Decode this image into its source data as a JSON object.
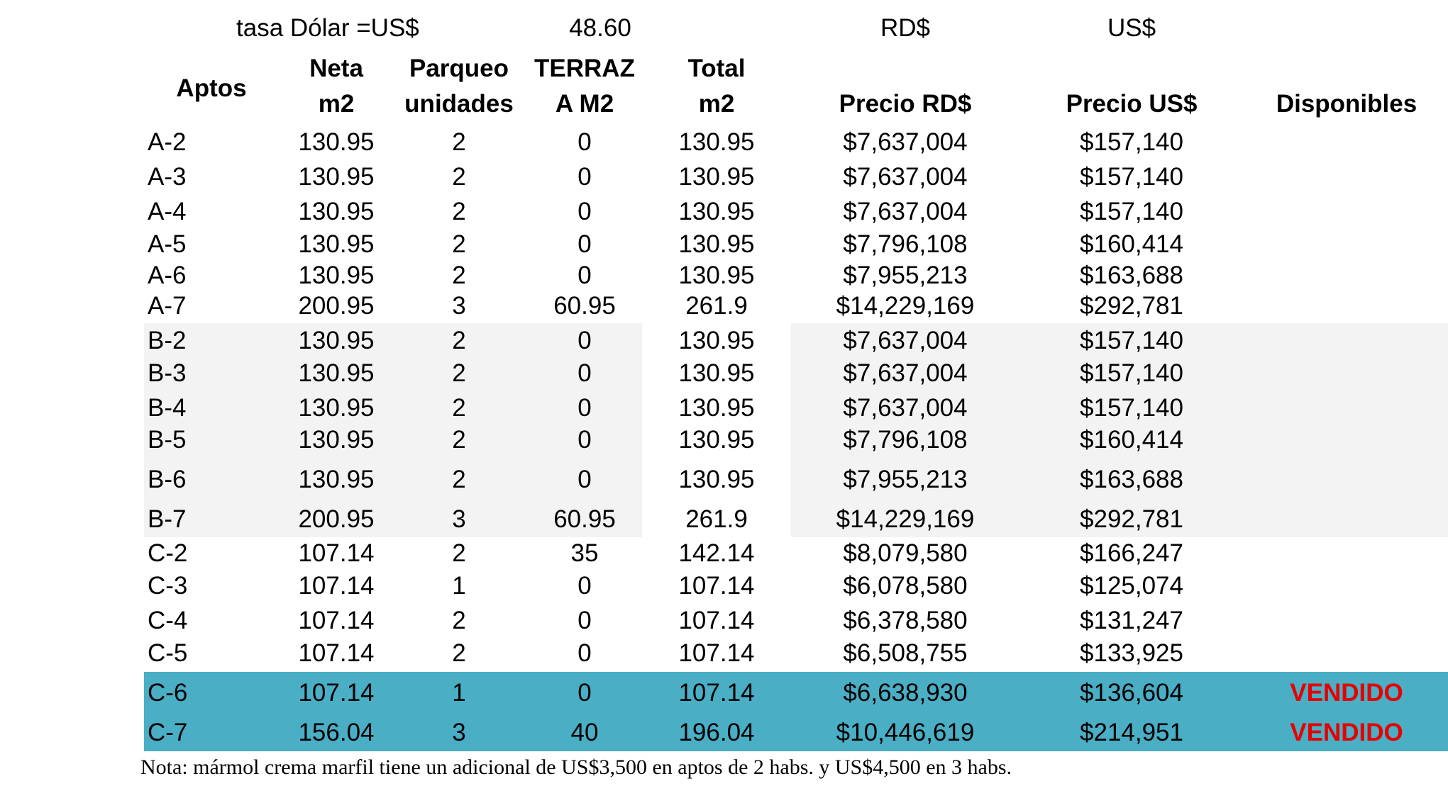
{
  "header": {
    "rate_label": "tasa Dólar =US$",
    "rate_value": "48.60",
    "currency_rd": "RD$",
    "currency_us": "US$"
  },
  "columns": {
    "aptos": "Aptos",
    "neta_1": "Neta",
    "neta_2": "m2",
    "parqueo_1": "Parqueo",
    "parqueo_2": "unidades",
    "terraza_1": "TERRAZ",
    "terraza_2": "A M2",
    "total_1": "Total",
    "total_2": "m2",
    "precio_rd": "Precio RD$",
    "precio_us": "Precio US$",
    "disponibles": "Disponibles"
  },
  "rows": [
    {
      "apto": "A-2",
      "neta": "130.95",
      "parqueo": "2",
      "terraza": "0",
      "total": "130.95",
      "precio_rd": "$7,637,004",
      "precio_us": "$157,140",
      "status": ""
    },
    {
      "apto": "A-3",
      "neta": "130.95",
      "parqueo": "2",
      "terraza": "0",
      "total": "130.95",
      "precio_rd": "$7,637,004",
      "precio_us": "$157,140",
      "status": ""
    },
    {
      "apto": "A-4",
      "neta": "130.95",
      "parqueo": "2",
      "terraza": "0",
      "total": "130.95",
      "precio_rd": "$7,637,004",
      "precio_us": "$157,140",
      "status": ""
    },
    {
      "apto": "A-5",
      "neta": "130.95",
      "parqueo": "2",
      "terraza": "0",
      "total": "130.95",
      "precio_rd": "$7,796,108",
      "precio_us": "$160,414",
      "status": ""
    },
    {
      "apto": "A-6",
      "neta": "130.95",
      "parqueo": "2",
      "terraza": "0",
      "total": "130.95",
      "precio_rd": "$7,955,213",
      "precio_us": "$163,688",
      "status": ""
    },
    {
      "apto": "A-7",
      "neta": "200.95",
      "parqueo": "3",
      "terraza": "60.95",
      "total": "261.9",
      "precio_rd": "$14,229,169",
      "precio_us": "$292,781",
      "status": ""
    },
    {
      "apto": "B-2",
      "neta": "130.95",
      "parqueo": "2",
      "terraza": "0",
      "total": "130.95",
      "precio_rd": "$7,637,004",
      "precio_us": "$157,140",
      "status": ""
    },
    {
      "apto": "B-3",
      "neta": "130.95",
      "parqueo": "2",
      "terraza": "0",
      "total": "130.95",
      "precio_rd": "$7,637,004",
      "precio_us": "$157,140",
      "status": ""
    },
    {
      "apto": "B-4",
      "neta": "130.95",
      "parqueo": "2",
      "terraza": "0",
      "total": "130.95",
      "precio_rd": "$7,637,004",
      "precio_us": "$157,140",
      "status": ""
    },
    {
      "apto": "B-5",
      "neta": "130.95",
      "parqueo": "2",
      "terraza": "0",
      "total": "130.95",
      "precio_rd": "$7,796,108",
      "precio_us": "$160,414",
      "status": ""
    },
    {
      "apto": "B-6",
      "neta": "130.95",
      "parqueo": "2",
      "terraza": "0",
      "total": "130.95",
      "precio_rd": "$7,955,213",
      "precio_us": "$163,688",
      "status": ""
    },
    {
      "apto": "B-7",
      "neta": "200.95",
      "parqueo": "3",
      "terraza": "60.95",
      "total": "261.9",
      "precio_rd": "$14,229,169",
      "precio_us": "$292,781",
      "status": ""
    },
    {
      "apto": "C-2",
      "neta": "107.14",
      "parqueo": "2",
      "terraza": "35",
      "total": "142.14",
      "precio_rd": "$8,079,580",
      "precio_us": "$166,247",
      "status": ""
    },
    {
      "apto": "C-3",
      "neta": "107.14",
      "parqueo": "1",
      "terraza": "0",
      "total": "107.14",
      "precio_rd": "$6,078,580",
      "precio_us": "$125,074",
      "status": ""
    },
    {
      "apto": "C-4",
      "neta": "107.14",
      "parqueo": "2",
      "terraza": "0",
      "total": "107.14",
      "precio_rd": "$6,378,580",
      "precio_us": "$131,247",
      "status": ""
    },
    {
      "apto": "C-5",
      "neta": "107.14",
      "parqueo": "2",
      "terraza": "0",
      "total": "107.14",
      "precio_rd": "$6,508,755",
      "precio_us": "$133,925",
      "status": ""
    },
    {
      "apto": "C-6",
      "neta": "107.14",
      "parqueo": "1",
      "terraza": "0",
      "total": "107.14",
      "precio_rd": "$6,638,930",
      "precio_us": "$136,604",
      "status": "VENDIDO"
    },
    {
      "apto": "C-7",
      "neta": "156.04",
      "parqueo": "3",
      "terraza": "40",
      "total": "196.04",
      "precio_rd": "$10,446,619",
      "precio_us": "$214,951",
      "status": "VENDIDO"
    }
  ],
  "note": "Nota:  mármol crema marfil tiene un adicional de US$3,500 en aptos de 2 habs. y US$4,500 en 3 habs.",
  "colors": {
    "sold_row": "#4aaec5",
    "b_block": "#f3f3f3",
    "sold_text": "#e60000"
  }
}
